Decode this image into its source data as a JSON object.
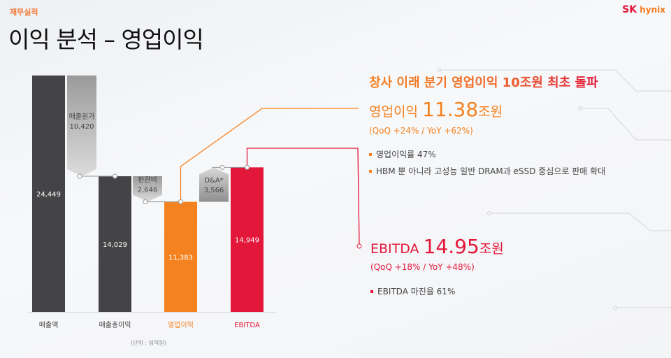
{
  "header": {
    "section": "재무실적",
    "title": "이익 분석 – 영업이익",
    "logo": {
      "brand": "SK",
      "name": "hynix"
    }
  },
  "summary": {
    "headline": "창사 이래 분기 영업이익 10조원 최초 돌파",
    "operating_profit": {
      "label": "영업이익",
      "value": "11.38",
      "unit": "조원",
      "change": "(QoQ +24% / YoY +62%)",
      "bullets": [
        "영업이익률 47%",
        "HBM 뿐 아니라 고성능 일반 DRAM과 eSSD 중심으로 판매 확대"
      ]
    },
    "ebitda": {
      "label": "EBITDA",
      "value": "14.95",
      "unit": "조원",
      "change": "(QoQ +18% / YoY +48%)",
      "bullets": [
        "EBITDA 마진율 61%"
      ]
    }
  },
  "chart_data": {
    "type": "bar",
    "subtype": "waterfall",
    "unit_note": "(단위 : 십억원)",
    "categories": [
      "매출액",
      "매출총이익",
      "영업이익",
      "EBITDA"
    ],
    "values": [
      24449,
      14029,
      11383,
      14949
    ],
    "value_labels": [
      "24,449",
      "14,029",
      "11,383",
      "14,949"
    ],
    "colors": [
      "#444446",
      "#444446",
      "#f58220",
      "#e3173a"
    ],
    "label_colors": [
      "#444444",
      "#444444",
      "#f58220",
      "#e3173a"
    ],
    "steps": [
      {
        "label": "매출원가",
        "value": 10420,
        "value_label": "10,420",
        "from": 24449,
        "to": 14029
      },
      {
        "label": "판관비",
        "value": 2646,
        "value_label": "2,646",
        "from": 14029,
        "to": 11383
      },
      {
        "label": "D&A*",
        "value": 3566,
        "value_label": "3,566",
        "from": 11383,
        "to": 14949
      }
    ],
    "ylim": [
      0,
      24449
    ]
  },
  "colors": {
    "orange": "#f58220",
    "red": "#e3173a",
    "dark": "#444446"
  }
}
